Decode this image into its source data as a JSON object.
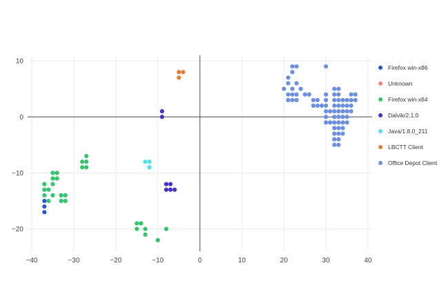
{
  "chart_data": {
    "type": "scatter",
    "title": "",
    "xlabel": "",
    "ylabel": "",
    "xlim": [
      -41,
      41
    ],
    "ylim": [
      -24,
      11
    ],
    "xticks": [
      -40,
      -30,
      -20,
      -10,
      0,
      10,
      20,
      30,
      40
    ],
    "yticks": [
      10,
      0,
      -10,
      -20
    ],
    "grid": true,
    "zero_lines": true,
    "legend_position": "right",
    "series": [
      {
        "name": "Firefox win-x86",
        "color": "#2a55d8",
        "points": [
          [
            -37,
            -15
          ],
          [
            -37,
            -16
          ],
          [
            -37,
            -17
          ]
        ]
      },
      {
        "name": "Unknown",
        "color": "#f4827a",
        "points": []
      },
      {
        "name": "Firefox win-x64",
        "color": "#2ec76a",
        "points": [
          [
            -37,
            -12
          ],
          [
            -37,
            -13
          ],
          [
            -37,
            -14
          ],
          [
            -36,
            -13
          ],
          [
            -36,
            -15
          ],
          [
            -35,
            -10
          ],
          [
            -35,
            -11
          ],
          [
            -35,
            -12
          ],
          [
            -35,
            -14
          ],
          [
            -34,
            -10
          ],
          [
            -34,
            -11
          ],
          [
            -33,
            -14
          ],
          [
            -33,
            -15
          ],
          [
            -32,
            -14
          ],
          [
            -32,
            -15
          ],
          [
            -28,
            -8
          ],
          [
            -28,
            -9
          ],
          [
            -27,
            -7
          ],
          [
            -27,
            -8
          ],
          [
            -27,
            -9
          ],
          [
            -15,
            -19
          ],
          [
            -15,
            -20
          ],
          [
            -14,
            -19
          ],
          [
            -13,
            -20
          ],
          [
            -13,
            -21
          ],
          [
            -10,
            -22
          ],
          [
            -8,
            -20
          ]
        ]
      },
      {
        "name": "Dalvik/2.1.0",
        "color": "#4b2fcc",
        "points": [
          [
            -9,
            1
          ],
          [
            -9,
            0
          ],
          [
            -8,
            -12
          ],
          [
            -8,
            -13
          ],
          [
            -7,
            -12
          ],
          [
            -7,
            -13
          ],
          [
            -6,
            -13
          ]
        ]
      },
      {
        "name": "Java/1.8.0_211",
        "color": "#4ce3e6",
        "points": [
          [
            -13,
            -8
          ],
          [
            -12,
            -8
          ],
          [
            -12,
            -9
          ]
        ]
      },
      {
        "name": "LBCTT Client",
        "color": "#f07a2c",
        "points": [
          [
            -5,
            8
          ],
          [
            -5,
            7
          ],
          [
            -4,
            8
          ]
        ]
      },
      {
        "name": "Office Depot Client",
        "color": "#6b8fe6",
        "points": [
          [
            20,
            5
          ],
          [
            21,
            4
          ],
          [
            21,
            6
          ],
          [
            21,
            7
          ],
          [
            21,
            3
          ],
          [
            22,
            9
          ],
          [
            22,
            8
          ],
          [
            22,
            5
          ],
          [
            22,
            4
          ],
          [
            22,
            3
          ],
          [
            23,
            9
          ],
          [
            23,
            6
          ],
          [
            23,
            4
          ],
          [
            23,
            3
          ],
          [
            24,
            5
          ],
          [
            25,
            4
          ],
          [
            26,
            4
          ],
          [
            27,
            3
          ],
          [
            27,
            2
          ],
          [
            28,
            3
          ],
          [
            28,
            2
          ],
          [
            29,
            2
          ],
          [
            30,
            9
          ],
          [
            30,
            4
          ],
          [
            30,
            3
          ],
          [
            30,
            2
          ],
          [
            30,
            1
          ],
          [
            30,
            0
          ],
          [
            30,
            -1
          ],
          [
            31,
            1
          ],
          [
            31,
            -1
          ],
          [
            32,
            5
          ],
          [
            32,
            4
          ],
          [
            32,
            3
          ],
          [
            32,
            2
          ],
          [
            32,
            1
          ],
          [
            32,
            0
          ],
          [
            32,
            -1
          ],
          [
            32,
            -2
          ],
          [
            32,
            -3
          ],
          [
            32,
            -4
          ],
          [
            32,
            -5
          ],
          [
            33,
            5
          ],
          [
            33,
            4
          ],
          [
            33,
            3
          ],
          [
            33,
            2
          ],
          [
            33,
            1
          ],
          [
            33,
            0
          ],
          [
            33,
            -1
          ],
          [
            33,
            -2
          ],
          [
            33,
            -3
          ],
          [
            33,
            -4
          ],
          [
            33,
            -5
          ],
          [
            34,
            3
          ],
          [
            34,
            2
          ],
          [
            34,
            1
          ],
          [
            34,
            0
          ],
          [
            34,
            -1
          ],
          [
            34,
            -2
          ],
          [
            34,
            -3
          ],
          [
            35,
            3
          ],
          [
            35,
            2
          ],
          [
            35,
            1
          ],
          [
            35,
            0
          ],
          [
            35,
            -1
          ],
          [
            36,
            4
          ],
          [
            36,
            3
          ],
          [
            36,
            2
          ],
          [
            36,
            1
          ],
          [
            37,
            4
          ],
          [
            37,
            3
          ]
        ]
      }
    ]
  }
}
